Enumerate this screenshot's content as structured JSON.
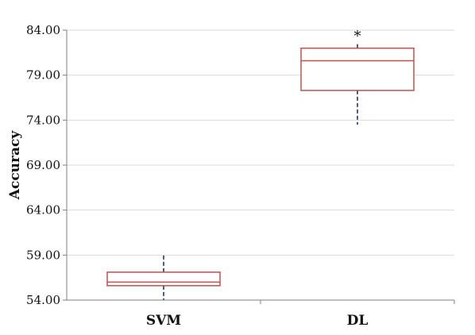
{
  "chart_data": {
    "type": "box",
    "title": "",
    "xlabel": "",
    "ylabel": "Accuracy",
    "ylim": [
      54,
      84
    ],
    "yticks": [
      "54.00",
      "59.00",
      "64.00",
      "69.00",
      "74.00",
      "79.00",
      "84.00"
    ],
    "yticks_values": [
      54,
      59,
      64,
      69,
      74,
      79,
      84
    ],
    "grid": true,
    "categories": [
      "SVM",
      "DL"
    ],
    "boxes": [
      {
        "category": "SVM",
        "whisker_low": 54.0,
        "q1": 55.6,
        "median": 56.0,
        "q3": 57.1,
        "whisker_high": 59.0,
        "outliers": []
      },
      {
        "category": "DL",
        "whisker_low": 73.5,
        "q1": 77.3,
        "median": 80.6,
        "q3": 82.0,
        "whisker_high": 82.5,
        "outliers": [
          83.7
        ]
      }
    ],
    "outlier_marker": "*",
    "colors": {
      "box": "#c0504d",
      "whisker": "#1f3864",
      "grid": "#d9d9d9",
      "axis": "#7f7f7f"
    }
  }
}
